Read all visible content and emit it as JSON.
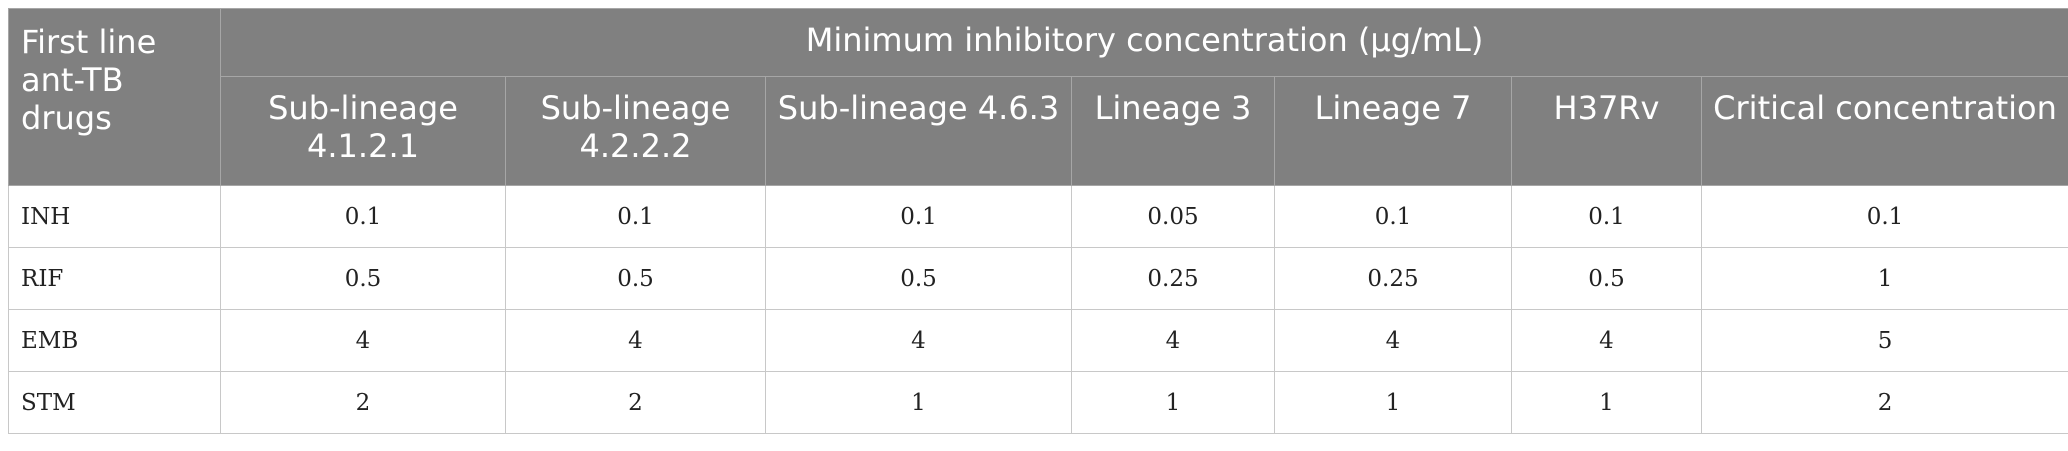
{
  "table": {
    "row_header_label": "First line ant-TB drugs",
    "group_header": "Minimum inhibitory concentration (µg/mL)",
    "columns": [
      "Sub-lineage 4.1.2.1",
      "Sub-lineage 4.2.2.2",
      "Sub-lineage 4.6.3",
      "Lineage 3",
      "Lineage 7",
      "H37Rv",
      "Critical concentration"
    ],
    "rows": [
      {
        "drug": "INH",
        "values": [
          "0.1",
          "0.1",
          "0.1",
          "0.05",
          "0.1",
          "0.1",
          "0.1"
        ]
      },
      {
        "drug": "RIF",
        "values": [
          "0.5",
          "0.5",
          "0.5",
          "0.25",
          "0.25",
          "0.5",
          "1"
        ]
      },
      {
        "drug": "EMB",
        "values": [
          "4",
          "4",
          "4",
          "4",
          "4",
          "4",
          "5"
        ]
      },
      {
        "drug": "STM",
        "values": [
          "2",
          "2",
          "1",
          "1",
          "1",
          "1",
          "2"
        ]
      }
    ]
  },
  "colors": {
    "header_bg": "#808080",
    "header_text": "#ffffff",
    "grid_line": "#c8c8c8"
  }
}
